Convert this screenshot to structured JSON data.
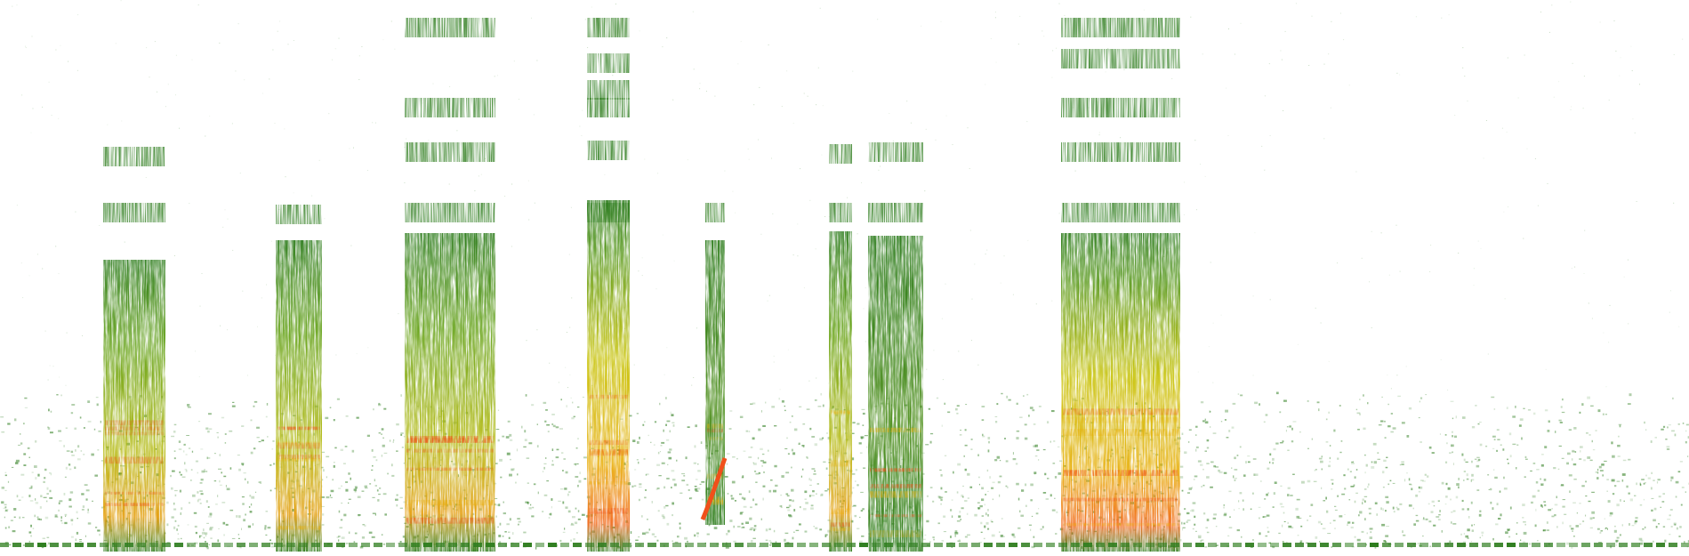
{
  "image": {
    "kind": "spectrogram",
    "background": "#ffffff",
    "colormap": [
      "#ffffff",
      "#2e7d1e",
      "#6aa51f",
      "#d9d10a",
      "#f4a20f",
      "#f0501a"
    ]
  }
}
